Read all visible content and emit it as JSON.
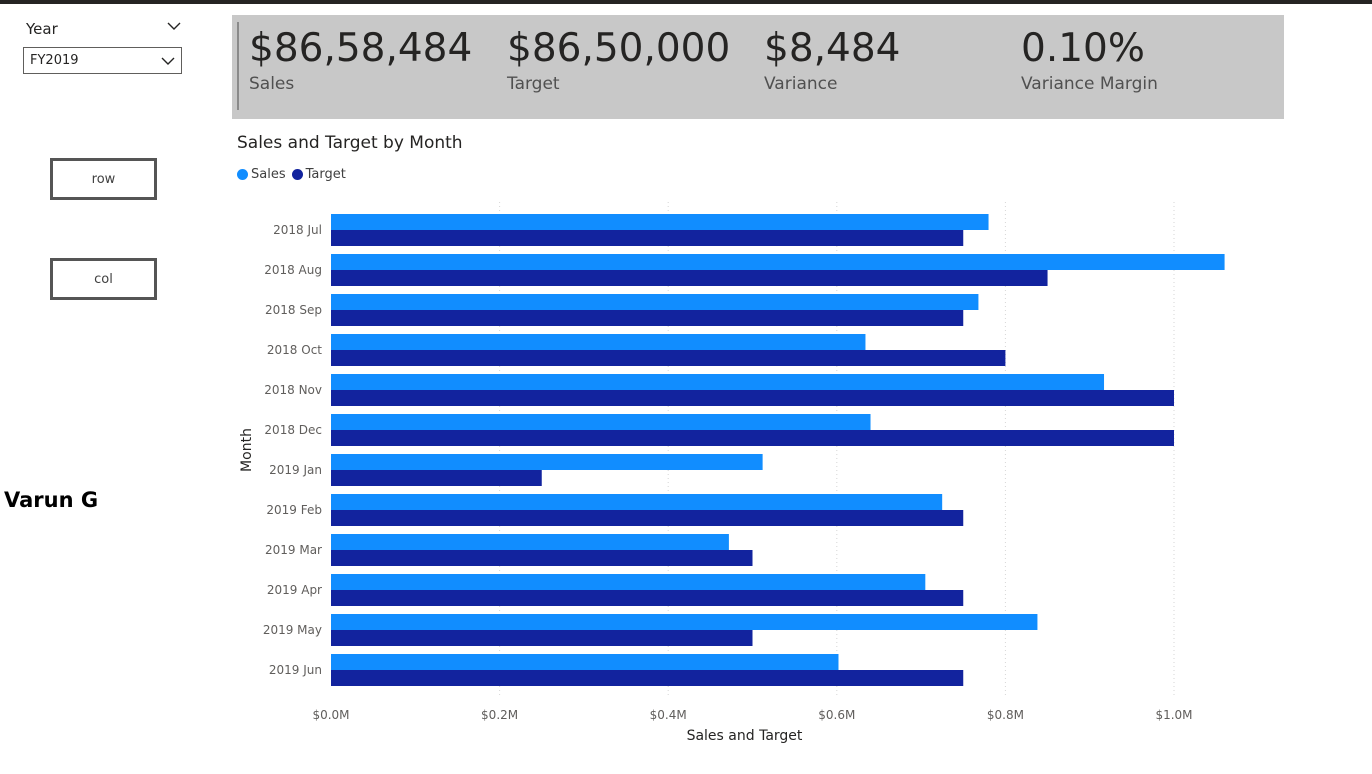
{
  "slicer": {
    "title": "Year",
    "selected": "FY2019"
  },
  "buttons": {
    "row_label": "row",
    "col_label": "col"
  },
  "author": "Varun G",
  "kpis": [
    {
      "value": "$86,58,484",
      "label": "Sales"
    },
    {
      "value": "$86,50,000",
      "label": "Target"
    },
    {
      "value": "$8,484",
      "label": "Variance"
    },
    {
      "value": "0.10%",
      "label": "Variance Margin"
    }
  ],
  "colors": {
    "sales": "#118dff",
    "target": "#12239e"
  },
  "chart_data": {
    "type": "bar",
    "orientation": "horizontal",
    "title": "Sales and Target by Month",
    "xlabel": "Sales and Target",
    "ylabel": "Month",
    "categories": [
      "2018 Jul",
      "2018 Aug",
      "2018 Sep",
      "2018 Oct",
      "2018 Nov",
      "2018 Dec",
      "2019 Jan",
      "2019 Feb",
      "2019 Mar",
      "2019 Apr",
      "2019 May",
      "2019 Jun"
    ],
    "series": [
      {
        "name": "Sales",
        "values": [
          780000,
          1060000,
          768000,
          634000,
          917000,
          640000,
          512000,
          725000,
          472000,
          705000,
          838000,
          602000
        ]
      },
      {
        "name": "Target",
        "values": [
          750000,
          850000,
          750000,
          800000,
          1000000,
          1000000,
          250000,
          750000,
          500000,
          750000,
          500000,
          750000
        ]
      }
    ],
    "xlim": [
      0,
      1100000
    ],
    "x_ticks": [
      0,
      200000,
      400000,
      600000,
      800000,
      1000000
    ],
    "x_tick_labels": [
      "$0.0M",
      "$0.2M",
      "$0.4M",
      "$0.6M",
      "$0.8M",
      "$1.0M"
    ],
    "grid": true,
    "legend_position": "top-left"
  }
}
